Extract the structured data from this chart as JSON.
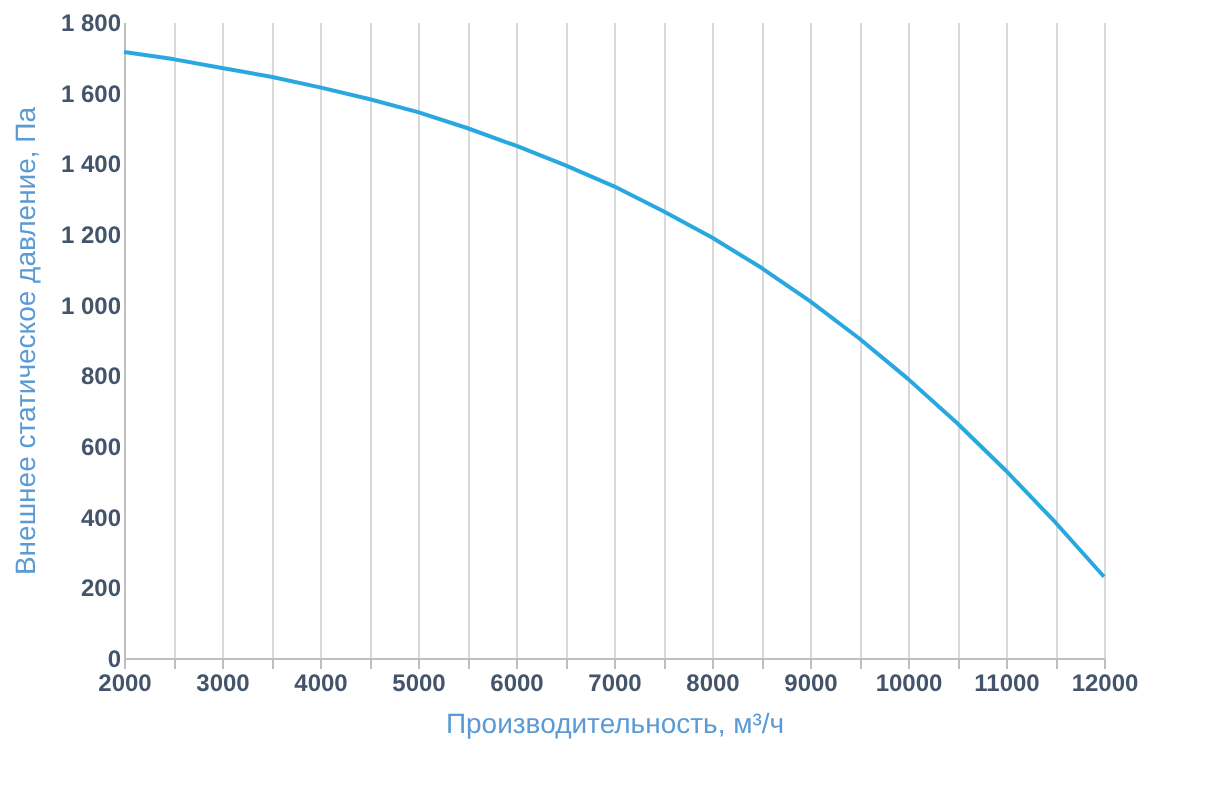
{
  "chart_data": {
    "type": "line",
    "xlabel": "Производительность, м³/ч",
    "ylabel": "Внешнее статическое давление, Па",
    "x": [
      2000,
      2500,
      3000,
      3500,
      4000,
      4500,
      5000,
      5500,
      6000,
      6500,
      7000,
      7500,
      8000,
      8500,
      9000,
      9500,
      10000,
      10500,
      11000,
      11500,
      12000
    ],
    "series": [
      {
        "color": "#29a8e0",
        "values": [
          1715,
          1695,
          1670,
          1645,
          1615,
          1582,
          1545,
          1500,
          1450,
          1395,
          1335,
          1265,
          1190,
          1105,
          1010,
          905,
          790,
          665,
          530,
          385,
          230
        ]
      }
    ],
    "xlim": [
      2000,
      12000
    ],
    "xticks": [
      2000,
      {
        "value": 2500,
        "label": null
      },
      3000,
      {
        "value": 3500,
        "label": null
      },
      4000,
      {
        "value": 4500,
        "label": null
      },
      5000,
      {
        "value": 5500,
        "label": null
      },
      6000,
      {
        "value": 6500,
        "label": null
      },
      7000,
      {
        "value": 7500,
        "label": null
      },
      8000,
      {
        "value": 8500,
        "label": null
      },
      9000,
      {
        "value": 9500,
        "label": null
      },
      10000,
      {
        "value": 10500,
        "label": null
      },
      11000,
      {
        "value": 11500,
        "label": null
      },
      12000
    ],
    "ylim": [
      0,
      1800
    ],
    "yticks": [
      0,
      200,
      400,
      600,
      800,
      {
        "value": 1000,
        "label": "1 000"
      },
      {
        "value": 1200,
        "label": "1 200"
      },
      {
        "value": 1400,
        "label": "1 400"
      },
      {
        "value": 1600,
        "label": "1 600"
      },
      {
        "value": 1800,
        "label": "1 800"
      }
    ],
    "grid": "x",
    "marker": "none",
    "line_style": "solid"
  }
}
